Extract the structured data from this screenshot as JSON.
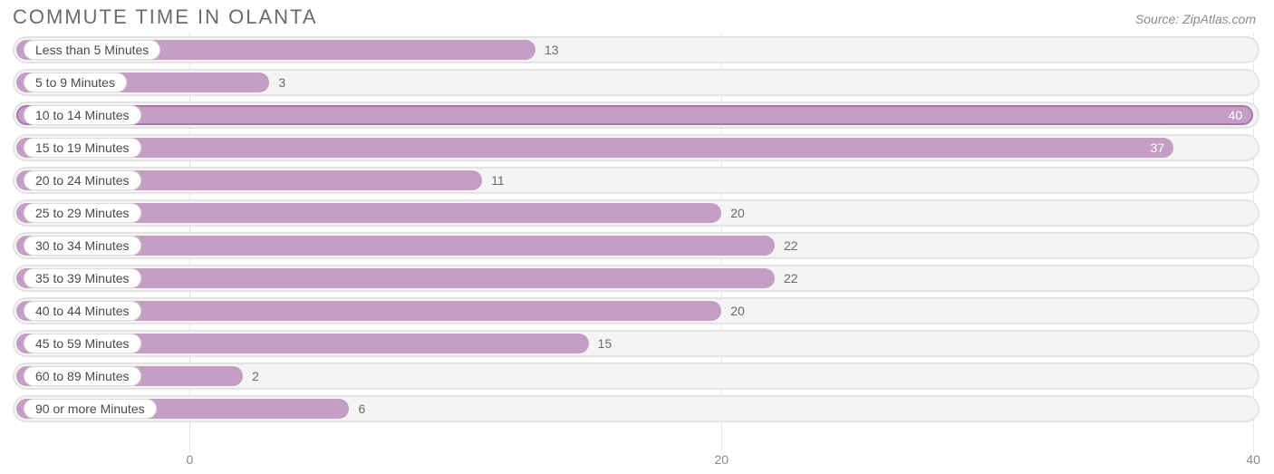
{
  "title": "COMMUTE TIME IN OLANTA",
  "source": "Source: ZipAtlas.com",
  "chart": {
    "type": "bar-horizontal",
    "bar_color": "#c49ec4",
    "bar_max_border": "#a877a8",
    "track_bg": "#f4f4f4",
    "track_border": "#e4e4e4",
    "grid_color": "#e6e6e6",
    "text_color": "#6b6b6b",
    "value_inside_color": "#ffffff",
    "origin_pct": 14.2,
    "xmax": 40,
    "ticks": [
      {
        "value": 0,
        "label": "0"
      },
      {
        "value": 20,
        "label": "20"
      },
      {
        "value": 40,
        "label": "40"
      }
    ],
    "rows": [
      {
        "label": "Less than 5 Minutes",
        "value": 13
      },
      {
        "label": "5 to 9 Minutes",
        "value": 3
      },
      {
        "label": "10 to 14 Minutes",
        "value": 40
      },
      {
        "label": "15 to 19 Minutes",
        "value": 37
      },
      {
        "label": "20 to 24 Minutes",
        "value": 11
      },
      {
        "label": "25 to 29 Minutes",
        "value": 20
      },
      {
        "label": "30 to 34 Minutes",
        "value": 22
      },
      {
        "label": "35 to 39 Minutes",
        "value": 22
      },
      {
        "label": "40 to 44 Minutes",
        "value": 20
      },
      {
        "label": "45 to 59 Minutes",
        "value": 15
      },
      {
        "label": "60 to 89 Minutes",
        "value": 2
      },
      {
        "label": "90 or more Minutes",
        "value": 6
      }
    ]
  }
}
